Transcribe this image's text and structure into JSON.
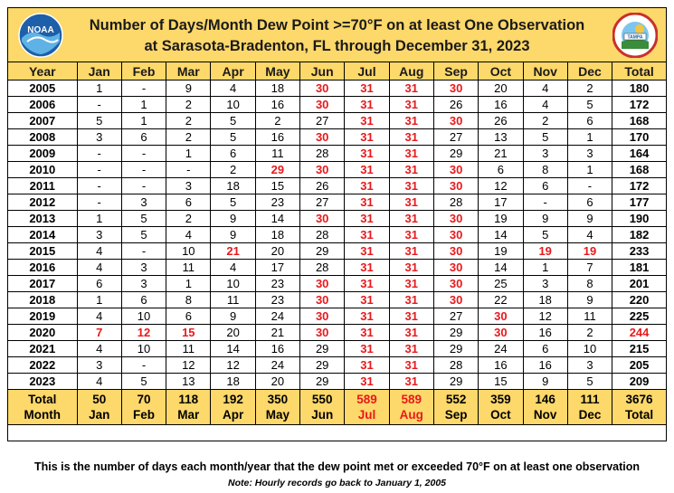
{
  "header": {
    "title_line1": "Number of Days/Month Dew Point >=70°F on at least One Observation",
    "title_line2": "at Sarasota-Bradenton, FL through December 31, 2023",
    "logo_left_text": "NOAA",
    "logo_right_text": "National Weather Service Tampa Bay"
  },
  "columns": [
    "Year",
    "Jan",
    "Feb",
    "Mar",
    "Apr",
    "May",
    "Jun",
    "Jul",
    "Aug",
    "Sep",
    "Oct",
    "Nov",
    "Dec",
    "Total"
  ],
  "highlight_color": "#e8191c",
  "header_color": "#fdd86a",
  "rows": [
    {
      "cells": [
        "2005",
        "1",
        "-",
        "9",
        "4",
        "18",
        "30",
        "31",
        "31",
        "30",
        "20",
        "4",
        "2",
        "180"
      ],
      "red": [
        6,
        7,
        8,
        9
      ]
    },
    {
      "cells": [
        "2006",
        "-",
        "1",
        "2",
        "10",
        "16",
        "30",
        "31",
        "31",
        "26",
        "16",
        "4",
        "5",
        "172"
      ],
      "red": [
        6,
        7,
        8
      ]
    },
    {
      "cells": [
        "2007",
        "5",
        "1",
        "2",
        "5",
        "2",
        "27",
        "31",
        "31",
        "30",
        "26",
        "2",
        "6",
        "168"
      ],
      "red": [
        7,
        8,
        9
      ]
    },
    {
      "cells": [
        "2008",
        "3",
        "6",
        "2",
        "5",
        "16",
        "30",
        "31",
        "31",
        "27",
        "13",
        "5",
        "1",
        "170"
      ],
      "red": [
        6,
        7,
        8
      ]
    },
    {
      "cells": [
        "2009",
        "-",
        "-",
        "1",
        "6",
        "11",
        "28",
        "31",
        "31",
        "29",
        "21",
        "3",
        "3",
        "164"
      ],
      "red": [
        7,
        8
      ]
    },
    {
      "cells": [
        "2010",
        "-",
        "-",
        "-",
        "2",
        "29",
        "30",
        "31",
        "31",
        "30",
        "6",
        "8",
        "1",
        "168"
      ],
      "red": [
        5,
        6,
        7,
        8,
        9
      ]
    },
    {
      "cells": [
        "2011",
        "-",
        "-",
        "3",
        "18",
        "15",
        "26",
        "31",
        "31",
        "30",
        "12",
        "6",
        "-",
        "172"
      ],
      "red": [
        7,
        8,
        9
      ]
    },
    {
      "cells": [
        "2012",
        "-",
        "3",
        "6",
        "5",
        "23",
        "27",
        "31",
        "31",
        "28",
        "17",
        "-",
        "6",
        "177"
      ],
      "red": [
        7,
        8
      ]
    },
    {
      "cells": [
        "2013",
        "1",
        "5",
        "2",
        "9",
        "14",
        "30",
        "31",
        "31",
        "30",
        "19",
        "9",
        "9",
        "190"
      ],
      "red": [
        6,
        7,
        8,
        9
      ]
    },
    {
      "cells": [
        "2014",
        "3",
        "5",
        "4",
        "9",
        "18",
        "28",
        "31",
        "31",
        "30",
        "14",
        "5",
        "4",
        "182"
      ],
      "red": [
        7,
        8,
        9
      ]
    },
    {
      "cells": [
        "2015",
        "4",
        "-",
        "10",
        "21",
        "20",
        "29",
        "31",
        "31",
        "30",
        "19",
        "19",
        "19",
        "233"
      ],
      "red": [
        4,
        7,
        8,
        9,
        11,
        12
      ]
    },
    {
      "cells": [
        "2016",
        "4",
        "3",
        "11",
        "4",
        "17",
        "28",
        "31",
        "31",
        "30",
        "14",
        "1",
        "7",
        "181"
      ],
      "red": [
        7,
        8,
        9
      ]
    },
    {
      "cells": [
        "2017",
        "6",
        "3",
        "1",
        "10",
        "23",
        "30",
        "31",
        "31",
        "30",
        "25",
        "3",
        "8",
        "201"
      ],
      "red": [
        6,
        7,
        8,
        9
      ]
    },
    {
      "cells": [
        "2018",
        "1",
        "6",
        "8",
        "11",
        "23",
        "30",
        "31",
        "31",
        "30",
        "22",
        "18",
        "9",
        "220"
      ],
      "red": [
        6,
        7,
        8,
        9
      ]
    },
    {
      "cells": [
        "2019",
        "4",
        "10",
        "6",
        "9",
        "24",
        "30",
        "31",
        "31",
        "27",
        "30",
        "12",
        "11",
        "225"
      ],
      "red": [
        6,
        7,
        8,
        10
      ]
    },
    {
      "cells": [
        "2020",
        "7",
        "12",
        "15",
        "20",
        "21",
        "30",
        "31",
        "31",
        "29",
        "30",
        "16",
        "2",
        "244"
      ],
      "red": [
        1,
        2,
        3,
        6,
        7,
        8,
        10,
        13
      ]
    },
    {
      "cells": [
        "2021",
        "4",
        "10",
        "11",
        "14",
        "16",
        "29",
        "31",
        "31",
        "29",
        "24",
        "6",
        "10",
        "215"
      ],
      "red": [
        7,
        8
      ]
    },
    {
      "cells": [
        "2022",
        "3",
        "-",
        "12",
        "12",
        "24",
        "29",
        "31",
        "31",
        "28",
        "16",
        "16",
        "3",
        "205"
      ],
      "red": [
        7,
        8
      ]
    },
    {
      "cells": [
        "2023",
        "4",
        "5",
        "13",
        "18",
        "20",
        "29",
        "31",
        "31",
        "29",
        "15",
        "9",
        "5",
        "209"
      ],
      "red": [
        7,
        8
      ]
    }
  ],
  "totals": {
    "cells": [
      [
        "Total",
        "Month"
      ],
      [
        "50",
        "Jan"
      ],
      [
        "70",
        "Feb"
      ],
      [
        "118",
        "Mar"
      ],
      [
        "192",
        "Apr"
      ],
      [
        "350",
        "May"
      ],
      [
        "550",
        "Jun"
      ],
      [
        "589",
        "Jul"
      ],
      [
        "589",
        "Aug"
      ],
      [
        "552",
        "Sep"
      ],
      [
        "359",
        "Oct"
      ],
      [
        "146",
        "Nov"
      ],
      [
        "111",
        "Dec"
      ],
      [
        "3676",
        "Total"
      ]
    ],
    "red": [
      7,
      8
    ]
  },
  "footer": {
    "line1": "This is the number of days each month/year that the dew point met or exceeded 70°F on at least one observation",
    "line2": "Note: Hourly records go back to January 1, 2005"
  }
}
